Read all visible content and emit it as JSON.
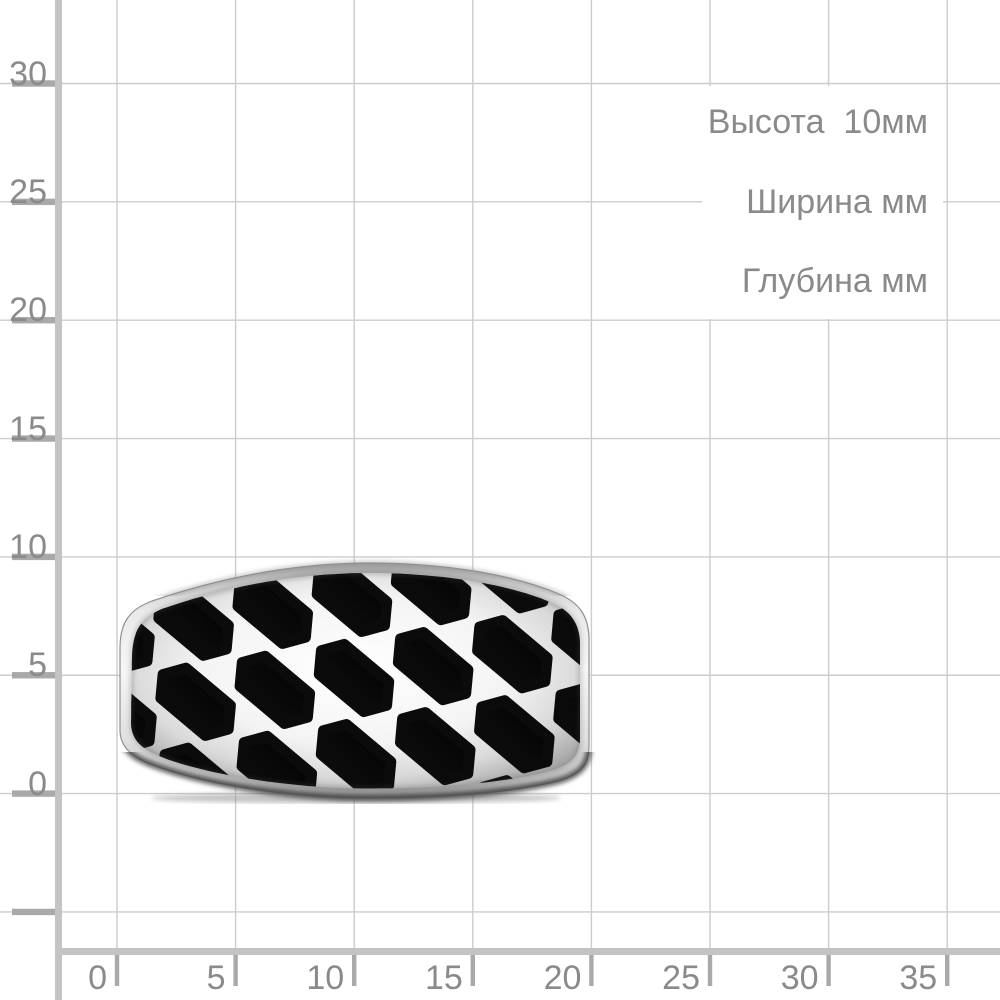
{
  "axis": {
    "y_labels": [
      "30",
      "25",
      "20",
      "15",
      "10",
      "5",
      "0"
    ],
    "x_labels": [
      "0",
      "5",
      "10",
      "15",
      "20",
      "25",
      "30",
      "35"
    ]
  },
  "annotations": {
    "height_label": "Высота  10мм",
    "width_label": "Ширина мм",
    "depth_label": "Глубина мм"
  },
  "object_description": "silver ring with black enamel honeycomb cutout pattern lying on millimeter grid",
  "colors": {
    "background": "#ffffff",
    "grid_line": "#cacdca",
    "axis_bar": "#c3c3c3",
    "tick": "#a9a9a9",
    "label_text": "#8a8a8a",
    "ring_metal_light": "#f6f6f6",
    "ring_metal_dark": "#989898",
    "ring_enamel_black": "#0b0b0b"
  }
}
